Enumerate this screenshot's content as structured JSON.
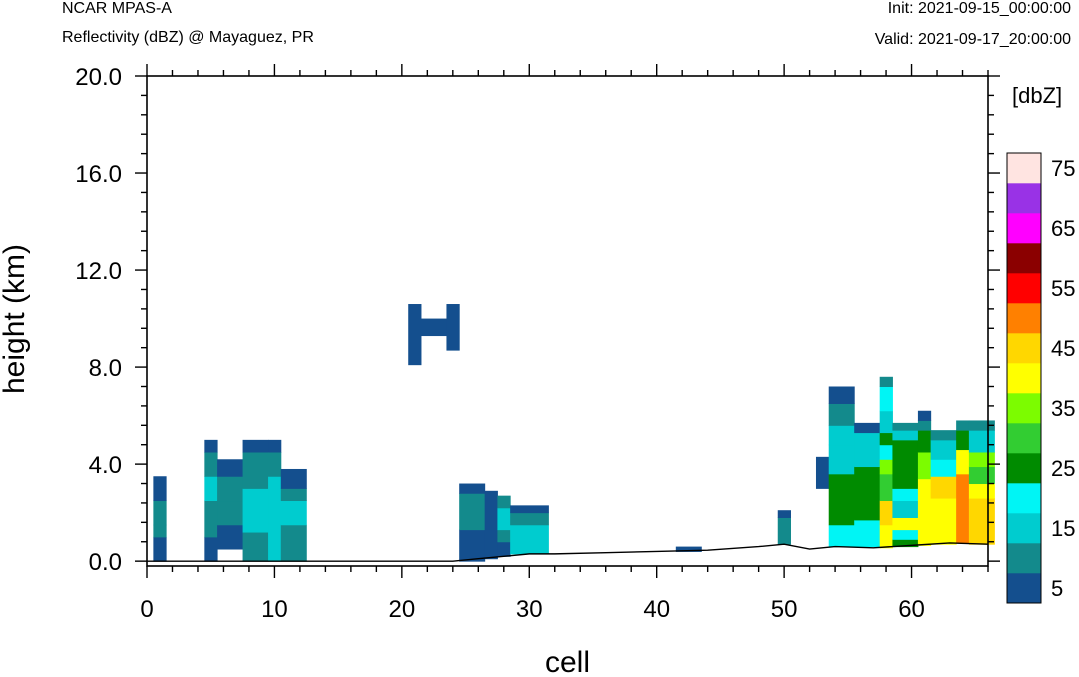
{
  "header": {
    "model": "NCAR MPAS-A",
    "field": "Reflectivity (dBZ) @ Mayaguez, PR",
    "init": "Init: 2021-09-15_00:00:00",
    "valid": "Valid: 2021-09-17_20:00:00"
  },
  "chart_data": {
    "type": "heatmap",
    "title": "Reflectivity (dBZ) @ Mayaguez, PR",
    "xlabel": "cell",
    "ylabel": "height (km)",
    "xlim": [
      0,
      66
    ],
    "ylim": [
      -0.2,
      20.0
    ],
    "xticks": [
      0,
      10,
      20,
      30,
      40,
      50,
      60
    ],
    "yticks": [
      0.0,
      4.0,
      8.0,
      12.0,
      16.0,
      20.0
    ],
    "ytick_labels": [
      "0.0",
      "4.0",
      "8.0",
      "12.0",
      "16.0",
      "20.0"
    ],
    "colorbar": {
      "title": "[dbZ]",
      "labels": [
        "5",
        "15",
        "25",
        "35",
        "45",
        "55",
        "65",
        "75"
      ],
      "levels": [
        5,
        10,
        15,
        20,
        25,
        30,
        35,
        40,
        45,
        50,
        55,
        60,
        65,
        70,
        75
      ],
      "colors": [
        "#144f8e",
        "#138a8c",
        "#00cccf",
        "#00f5f5",
        "#008b00",
        "#32cd32",
        "#7cfc00",
        "#ffff00",
        "#ffd700",
        "#ff8000",
        "#ff0000",
        "#8b0000",
        "#ff00ff",
        "#9932e6",
        "#ffe4e1"
      ]
    },
    "terrain": [
      [
        0,
        0.0
      ],
      [
        24,
        0.0
      ],
      [
        26,
        0.1
      ],
      [
        28,
        0.2
      ],
      [
        30,
        0.3
      ],
      [
        32,
        0.3
      ],
      [
        36,
        0.35
      ],
      [
        40,
        0.4
      ],
      [
        44,
        0.45
      ],
      [
        48,
        0.6
      ],
      [
        50,
        0.7
      ],
      [
        52,
        0.5
      ],
      [
        54,
        0.6
      ],
      [
        57,
        0.55
      ],
      [
        60,
        0.65
      ],
      [
        63,
        0.75
      ],
      [
        66,
        0.7
      ]
    ],
    "cells": [
      [
        0.5,
        1.5,
        0.0,
        1.0,
        5
      ],
      [
        0.5,
        1.5,
        1.0,
        1.5,
        10
      ],
      [
        0.5,
        1.5,
        1.5,
        2.5,
        10
      ],
      [
        0.5,
        1.5,
        2.5,
        3.5,
        5
      ],
      [
        4.5,
        5.5,
        0.0,
        1.0,
        5
      ],
      [
        4.5,
        5.5,
        1.0,
        2.5,
        10
      ],
      [
        4.5,
        5.5,
        2.5,
        3.5,
        15
      ],
      [
        4.5,
        5.5,
        3.5,
        4.5,
        10
      ],
      [
        4.5,
        5.5,
        4.5,
        5.0,
        5
      ],
      [
        5.5,
        7.5,
        0.5,
        1.5,
        5
      ],
      [
        5.5,
        7.5,
        1.5,
        2.5,
        10
      ],
      [
        5.5,
        7.5,
        2.5,
        3.5,
        10
      ],
      [
        5.5,
        7.5,
        3.5,
        4.2,
        5
      ],
      [
        7.5,
        9.5,
        0.0,
        1.2,
        10
      ],
      [
        7.5,
        9.5,
        1.2,
        3.0,
        15
      ],
      [
        7.5,
        9.5,
        3.0,
        4.5,
        10
      ],
      [
        7.5,
        9.5,
        4.5,
        5.0,
        5
      ],
      [
        9.5,
        10.5,
        0.0,
        2.0,
        15
      ],
      [
        9.5,
        10.5,
        2.0,
        3.5,
        15
      ],
      [
        9.5,
        10.5,
        3.5,
        4.5,
        10
      ],
      [
        9.5,
        10.5,
        4.5,
        5.0,
        5
      ],
      [
        10.5,
        12.5,
        0.0,
        1.5,
        10
      ],
      [
        10.5,
        12.5,
        1.5,
        2.5,
        15
      ],
      [
        10.5,
        12.5,
        2.5,
        3.0,
        10
      ],
      [
        10.5,
        12.5,
        3.0,
        3.8,
        5
      ],
      [
        20.5,
        21.5,
        8.1,
        10.6,
        5
      ],
      [
        21.5,
        23.5,
        9.3,
        10.0,
        5
      ],
      [
        23.5,
        24.5,
        8.7,
        10.6,
        5
      ],
      [
        24.5,
        26.5,
        0.0,
        1.3,
        5
      ],
      [
        24.5,
        26.5,
        1.3,
        2.8,
        10
      ],
      [
        24.5,
        26.5,
        2.8,
        3.2,
        5
      ],
      [
        26.5,
        27.5,
        0.1,
        2.9,
        5
      ],
      [
        27.5,
        28.5,
        0.2,
        0.8,
        5
      ],
      [
        27.5,
        28.5,
        0.8,
        1.3,
        10
      ],
      [
        27.5,
        28.5,
        1.3,
        2.2,
        15
      ],
      [
        27.5,
        28.5,
        2.2,
        2.7,
        10
      ],
      [
        28.5,
        31.5,
        0.3,
        1.5,
        15
      ],
      [
        28.5,
        31.5,
        1.5,
        2.0,
        10
      ],
      [
        28.5,
        31.5,
        2.0,
        2.3,
        5
      ],
      [
        41.5,
        43.5,
        0.4,
        0.6,
        5
      ],
      [
        49.5,
        50.5,
        0.7,
        1.8,
        10
      ],
      [
        49.5,
        50.5,
        1.8,
        2.1,
        5
      ],
      [
        52.5,
        53.5,
        3.0,
        4.3,
        5
      ],
      [
        53.5,
        55.5,
        0.6,
        1.5,
        20
      ],
      [
        53.5,
        55.5,
        1.5,
        3.6,
        25
      ],
      [
        53.5,
        55.5,
        3.6,
        4.8,
        15
      ],
      [
        53.5,
        55.5,
        4.8,
        5.6,
        15
      ],
      [
        53.5,
        55.5,
        5.6,
        6.5,
        10
      ],
      [
        53.5,
        55.5,
        6.5,
        7.2,
        5
      ],
      [
        55.5,
        57.5,
        0.6,
        1.7,
        20
      ],
      [
        55.5,
        57.5,
        1.7,
        3.9,
        25
      ],
      [
        55.5,
        57.5,
        3.9,
        5.3,
        15
      ],
      [
        55.5,
        57.5,
        5.3,
        5.7,
        5
      ],
      [
        57.5,
        58.5,
        0.55,
        1.5,
        40
      ],
      [
        57.5,
        58.5,
        1.5,
        2.5,
        45
      ],
      [
        57.5,
        58.5,
        2.5,
        3.6,
        30
      ],
      [
        57.5,
        58.5,
        3.6,
        4.2,
        35
      ],
      [
        57.5,
        58.5,
        4.2,
        4.8,
        20
      ],
      [
        57.5,
        58.5,
        4.8,
        5.3,
        25
      ],
      [
        57.5,
        58.5,
        5.3,
        6.2,
        15
      ],
      [
        57.5,
        58.5,
        6.2,
        7.2,
        20
      ],
      [
        57.5,
        58.5,
        7.2,
        7.6,
        10
      ],
      [
        58.5,
        60.5,
        0.6,
        0.9,
        25
      ],
      [
        58.5,
        60.5,
        0.9,
        1.3,
        20
      ],
      [
        58.5,
        60.5,
        1.3,
        1.8,
        40
      ],
      [
        58.5,
        60.5,
        1.8,
        2.5,
        15
      ],
      [
        58.5,
        60.5,
        2.5,
        3.0,
        20
      ],
      [
        58.5,
        60.5,
        3.0,
        5.0,
        25
      ],
      [
        58.5,
        60.5,
        5.0,
        5.4,
        15
      ],
      [
        58.5,
        60.5,
        5.4,
        5.7,
        10
      ],
      [
        60.5,
        61.5,
        0.65,
        1.5,
        40
      ],
      [
        60.5,
        61.5,
        1.5,
        3.4,
        40
      ],
      [
        60.5,
        61.5,
        3.4,
        4.5,
        35
      ],
      [
        60.5,
        61.5,
        4.5,
        5.4,
        25
      ],
      [
        60.5,
        61.5,
        5.4,
        5.8,
        10
      ],
      [
        60.5,
        61.5,
        5.8,
        6.2,
        5
      ],
      [
        61.5,
        63.5,
        0.7,
        2.6,
        40
      ],
      [
        61.5,
        63.5,
        2.6,
        3.5,
        45
      ],
      [
        61.5,
        63.5,
        3.5,
        4.2,
        20
      ],
      [
        61.5,
        63.5,
        4.2,
        5.0,
        15
      ],
      [
        61.5,
        63.5,
        5.0,
        5.4,
        10
      ],
      [
        63.5,
        64.5,
        0.75,
        3.6,
        50
      ],
      [
        63.5,
        64.5,
        3.6,
        4.6,
        40
      ],
      [
        63.5,
        64.5,
        4.6,
        5.4,
        25
      ],
      [
        63.5,
        64.5,
        5.4,
        5.8,
        10
      ],
      [
        64.5,
        66.5,
        0.7,
        2.6,
        45
      ],
      [
        64.5,
        66.5,
        2.6,
        3.2,
        40
      ],
      [
        64.5,
        66.5,
        3.2,
        3.9,
        30
      ],
      [
        64.5,
        66.5,
        3.9,
        4.5,
        35
      ],
      [
        64.5,
        66.5,
        4.5,
        5.4,
        15
      ],
      [
        64.5,
        66.5,
        5.4,
        5.8,
        10
      ]
    ]
  }
}
